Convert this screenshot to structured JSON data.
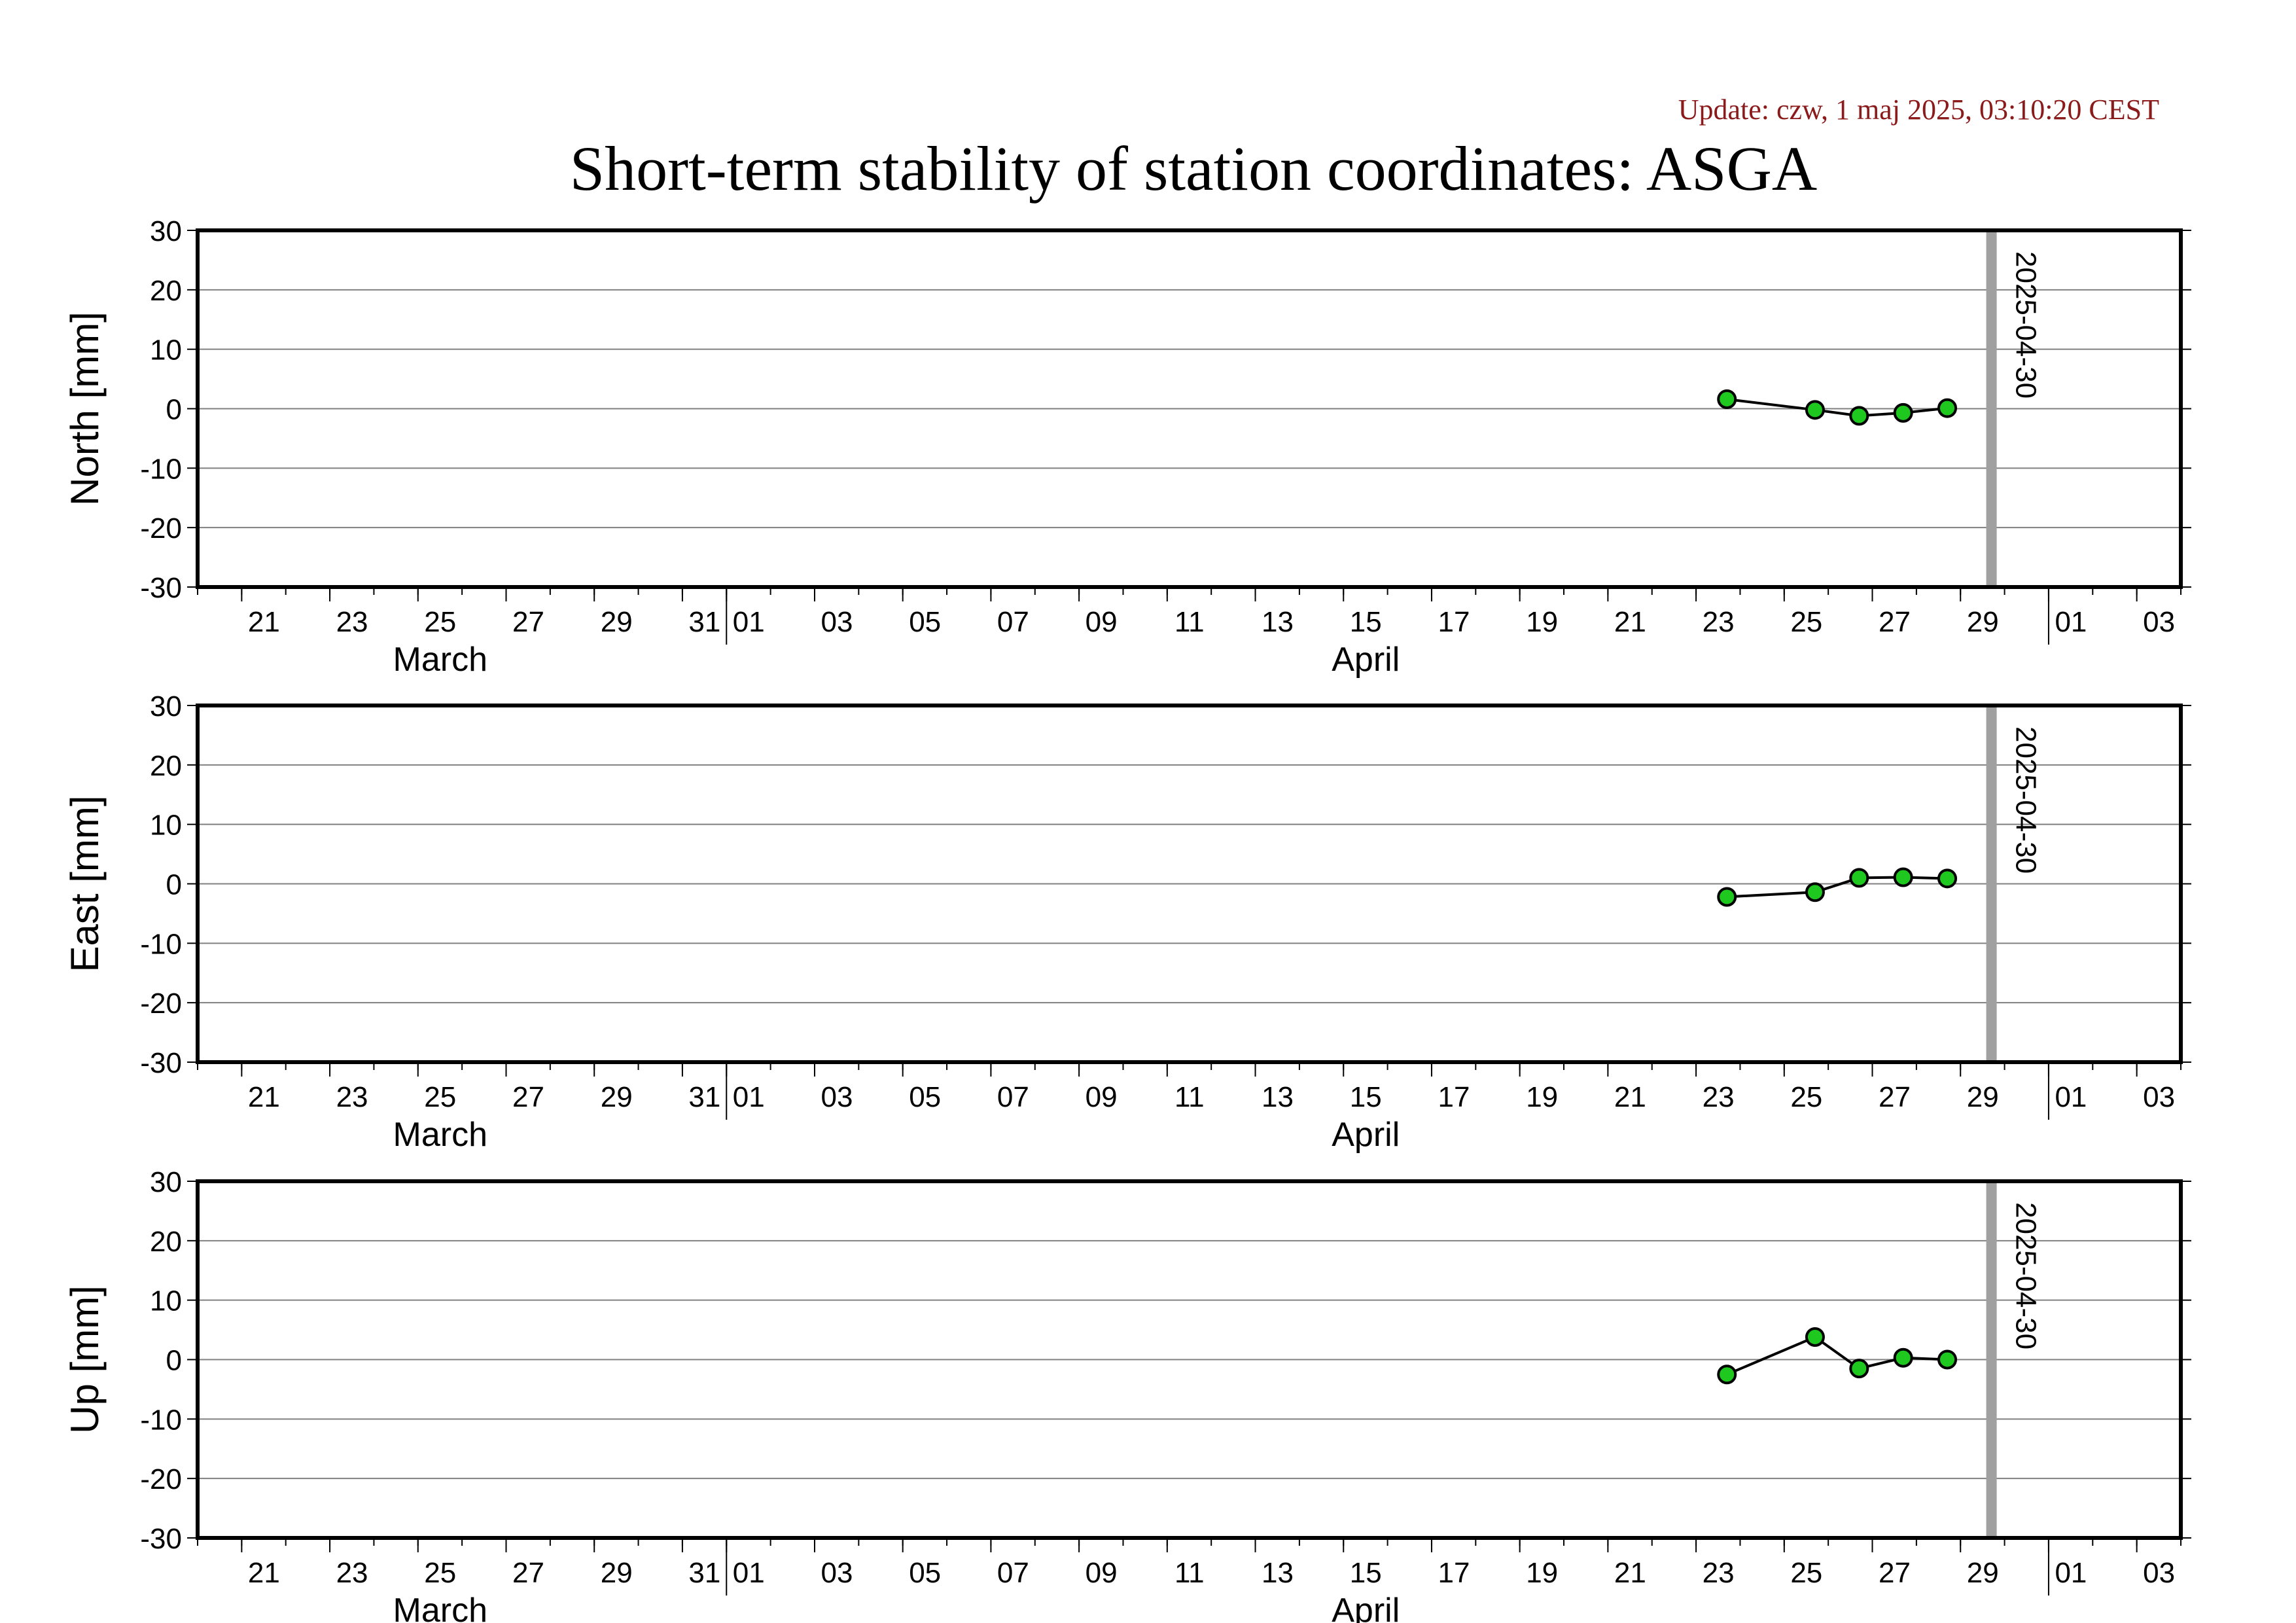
{
  "update_text": "Update: czw, 1 maj 2025, 03:10:20 CEST",
  "title": "Short-term stability of station coordinates: ASGA",
  "colors": {
    "update_text": "#8b1a1a",
    "point_fill": "#1fc81f",
    "marker_line": "#a0a0a0",
    "grid": "#808080",
    "axis": "#000000"
  },
  "x_axis": {
    "day_ticks": [
      {
        "date": "2025-03-21",
        "label": "21"
      },
      {
        "date": "2025-03-23",
        "label": "23"
      },
      {
        "date": "2025-03-25",
        "label": "25"
      },
      {
        "date": "2025-03-27",
        "label": "27"
      },
      {
        "date": "2025-03-29",
        "label": "29"
      },
      {
        "date": "2025-03-31",
        "label": "31"
      },
      {
        "date": "2025-04-01",
        "label": "01"
      },
      {
        "date": "2025-04-03",
        "label": "03"
      },
      {
        "date": "2025-04-05",
        "label": "05"
      },
      {
        "date": "2025-04-07",
        "label": "07"
      },
      {
        "date": "2025-04-09",
        "label": "09"
      },
      {
        "date": "2025-04-11",
        "label": "11"
      },
      {
        "date": "2025-04-13",
        "label": "13"
      },
      {
        "date": "2025-04-15",
        "label": "15"
      },
      {
        "date": "2025-04-17",
        "label": "17"
      },
      {
        "date": "2025-04-19",
        "label": "19"
      },
      {
        "date": "2025-04-21",
        "label": "21"
      },
      {
        "date": "2025-04-23",
        "label": "23"
      },
      {
        "date": "2025-04-25",
        "label": "25"
      },
      {
        "date": "2025-04-27",
        "label": "27"
      },
      {
        "date": "2025-04-29",
        "label": "29"
      },
      {
        "date": "2025-05-01",
        "label": "01"
      },
      {
        "date": "2025-05-03",
        "label": "03"
      }
    ],
    "month_labels": [
      {
        "date": "2025-03-25",
        "label": "March"
      },
      {
        "date": "2025-04-15",
        "label": "April"
      }
    ],
    "month_boundaries": [
      "2025-04-01",
      "2025-05-01"
    ]
  },
  "marker": {
    "date": "2025-04-30",
    "label": "2025-04-30"
  },
  "chart_data": [
    {
      "type": "line",
      "ylabel": "North [mm]",
      "xlim": [
        "2025-03-20",
        "2025-05-04"
      ],
      "ylim": [
        -30,
        30
      ],
      "yticks": [
        -30,
        -20,
        -10,
        0,
        10,
        20,
        30
      ],
      "grid": true,
      "x": [
        "2025-04-24",
        "2025-04-26",
        "2025-04-27",
        "2025-04-28",
        "2025-04-29"
      ],
      "values": [
        1.6,
        -0.2,
        -1.2,
        -0.7,
        0.1
      ]
    },
    {
      "type": "line",
      "ylabel": "East [mm]",
      "xlim": [
        "2025-03-20",
        "2025-05-04"
      ],
      "ylim": [
        -30,
        30
      ],
      "yticks": [
        -30,
        -20,
        -10,
        0,
        10,
        20,
        30
      ],
      "grid": true,
      "x": [
        "2025-04-24",
        "2025-04-26",
        "2025-04-27",
        "2025-04-28",
        "2025-04-29"
      ],
      "values": [
        -2.2,
        -1.4,
        1.0,
        1.1,
        0.9
      ]
    },
    {
      "type": "line",
      "ylabel": "Up [mm]",
      "xlim": [
        "2025-03-20",
        "2025-05-04"
      ],
      "ylim": [
        -30,
        30
      ],
      "yticks": [
        -30,
        -20,
        -10,
        0,
        10,
        20,
        30
      ],
      "grid": true,
      "x": [
        "2025-04-24",
        "2025-04-26",
        "2025-04-27",
        "2025-04-28",
        "2025-04-29"
      ],
      "values": [
        -2.5,
        3.8,
        -1.5,
        0.3,
        0.0
      ]
    }
  ]
}
